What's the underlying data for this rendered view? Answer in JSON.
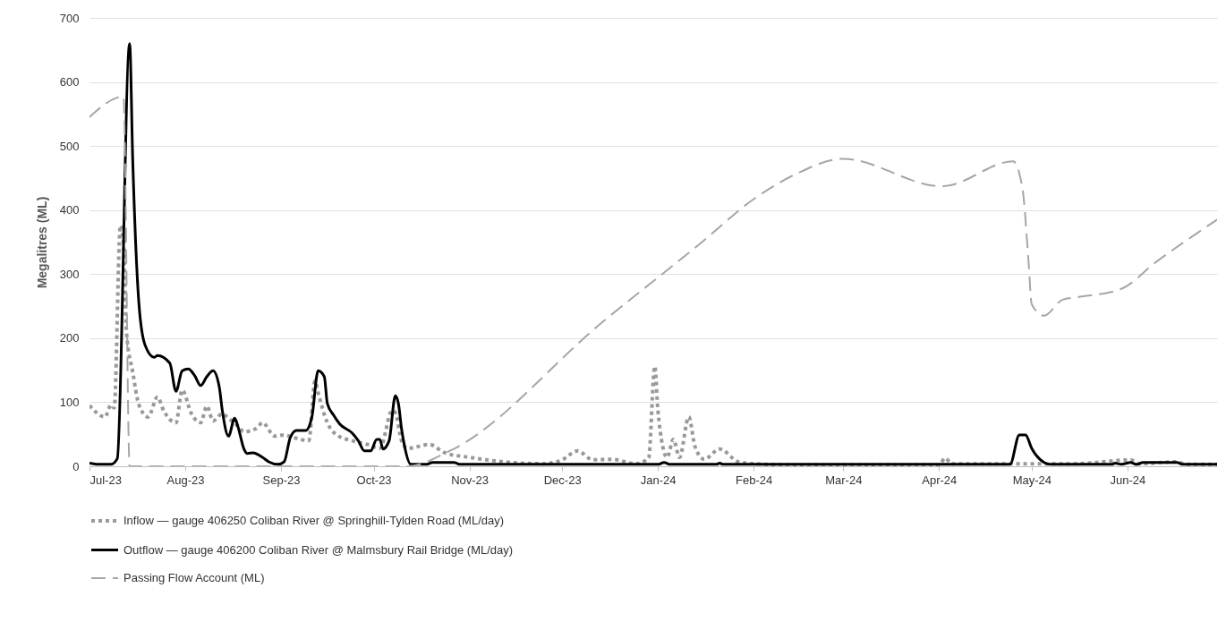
{
  "chart_data": {
    "type": "line",
    "ylabel": "Megalitres (ML)",
    "ylim": [
      0,
      700
    ],
    "yticks": [
      0,
      100,
      200,
      300,
      400,
      500,
      600,
      700
    ],
    "xlim": [
      "2023-07-01",
      "2024-06-30"
    ],
    "xticks": [
      {
        "value": "2023-07-01",
        "label": "Jul-23"
      },
      {
        "value": "2023-08-01",
        "label": "Aug-23"
      },
      {
        "value": "2023-09-01",
        "label": "Sep-23"
      },
      {
        "value": "2023-10-01",
        "label": "Oct-23"
      },
      {
        "value": "2023-11-01",
        "label": "Nov-23"
      },
      {
        "value": "2023-12-01",
        "label": "Dec-23"
      },
      {
        "value": "2024-01-01",
        "label": "Jan-24"
      },
      {
        "value": "2024-02-01",
        "label": "Feb-24"
      },
      {
        "value": "2024-03-01",
        "label": "Mar-24"
      },
      {
        "value": "2024-04-01",
        "label": "Apr-24"
      },
      {
        "value": "2024-05-01",
        "label": "May-24"
      },
      {
        "value": "2024-06-01",
        "label": "Jun-24"
      }
    ],
    "grid": "y",
    "legend": "bottom",
    "series": [
      {
        "name": "Inflow — gauge 406250 Coliban River @ Springhill-Tylden Road (ML/day)",
        "color": "#999999",
        "line_style": "dotted",
        "x": [
          "2023-07-01",
          "2023-07-03",
          "2023-07-06",
          "2023-07-08",
          "2023-07-09",
          "2023-07-11",
          "2023-07-12",
          "2023-07-13",
          "2023-07-15",
          "2023-07-17",
          "2023-07-20",
          "2023-07-23",
          "2023-07-25",
          "2023-07-29",
          "2023-07-31",
          "2023-08-03",
          "2023-08-06",
          "2023-08-08",
          "2023-08-10",
          "2023-08-13",
          "2023-08-15",
          "2023-08-18",
          "2023-08-20",
          "2023-08-24",
          "2023-08-26",
          "2023-08-30",
          "2023-09-02",
          "2023-09-05",
          "2023-09-10",
          "2023-09-12",
          "2023-09-13",
          "2023-09-16",
          "2023-09-19",
          "2023-09-24",
          "2023-09-29",
          "2023-10-03",
          "2023-10-07",
          "2023-10-08",
          "2023-10-10",
          "2023-10-12",
          "2023-10-19",
          "2023-10-24",
          "2023-11-01",
          "2023-11-12",
          "2023-11-25",
          "2023-12-01",
          "2023-12-06",
          "2023-12-11",
          "2023-12-17",
          "2023-12-25",
          "2023-12-29",
          "2023-12-31",
          "2024-01-01",
          "2024-01-04",
          "2024-01-06",
          "2024-01-08",
          "2024-01-11",
          "2024-01-13",
          "2024-01-16",
          "2024-01-21",
          "2024-01-27",
          "2024-02-01",
          "2024-02-15",
          "2024-03-15",
          "2024-04-01",
          "2024-04-03",
          "2024-04-05",
          "2024-05-15",
          "2024-06-02",
          "2024-06-05",
          "2024-06-17",
          "2024-06-20",
          "2024-06-30"
        ],
        "values": [
          95,
          85,
          77,
          96,
          91,
          376,
          348,
          208,
          147,
          96,
          77,
          108,
          87,
          68,
          119,
          82,
          68,
          94,
          71,
          82,
          75,
          63,
          54,
          59,
          68,
          47,
          49,
          45,
          40,
          133,
          115,
          68,
          49,
          40,
          34,
          28,
          87,
          84,
          40,
          28,
          34,
          21,
          14,
          7,
          4,
          10,
          24,
          10,
          11,
          4,
          13,
          156,
          87,
          14,
          42,
          14,
          77,
          31,
          11,
          27,
          7,
          4,
          2,
          2,
          2,
          13,
          4,
          4,
          10,
          4,
          7,
          3,
          3
        ]
      },
      {
        "name": "Outflow — gauge 406200 Coliban River @ Malmsbury Rail Bridge (ML/day)",
        "color": "#000000",
        "line_style": "solid",
        "x": [
          "2023-07-01",
          "2023-07-04",
          "2023-07-08",
          "2023-07-10",
          "2023-07-14",
          "2023-07-15",
          "2023-07-17",
          "2023-07-19",
          "2023-07-22",
          "2023-07-23",
          "2023-07-27",
          "2023-07-29",
          "2023-07-31",
          "2023-08-02",
          "2023-08-04",
          "2023-08-06",
          "2023-08-08",
          "2023-08-10",
          "2023-08-12",
          "2023-08-13",
          "2023-08-15",
          "2023-08-17",
          "2023-08-18",
          "2023-08-20",
          "2023-08-21",
          "2023-08-23",
          "2023-08-26",
          "2023-08-28",
          "2023-08-31",
          "2023-09-02",
          "2023-09-04",
          "2023-09-06",
          "2023-09-09",
          "2023-09-11",
          "2023-09-13",
          "2023-09-15",
          "2023-09-16",
          "2023-09-18",
          "2023-09-20",
          "2023-09-24",
          "2023-09-26",
          "2023-09-28",
          "2023-09-30",
          "2023-10-02",
          "2023-10-03",
          "2023-10-04",
          "2023-10-06",
          "2023-10-08",
          "2023-10-09",
          "2023-10-10",
          "2023-10-11",
          "2023-10-13",
          "2023-10-18",
          "2023-10-20",
          "2023-10-27",
          "2023-10-29",
          "2024-01-01",
          "2024-01-03",
          "2024-01-05",
          "2024-01-20",
          "2024-01-21",
          "2024-01-22",
          "2024-04-24",
          "2024-04-27",
          "2024-04-29",
          "2024-05-01",
          "2024-05-05",
          "2024-05-07",
          "2024-05-27",
          "2024-05-28",
          "2024-05-30",
          "2024-06-02",
          "2024-06-04",
          "2024-06-06",
          "2024-06-17",
          "2024-06-19",
          "2024-06-30"
        ],
        "values": [
          5,
          3,
          3,
          12,
          660,
          478,
          254,
          189,
          170,
          173,
          161,
          117,
          149,
          152,
          142,
          126,
          140,
          149,
          124,
          87,
          47,
          75,
          63,
          27,
          20,
          21,
          14,
          7,
          3,
          7,
          45,
          56,
          56,
          77,
          149,
          140,
          98,
          80,
          66,
          52,
          40,
          24,
          24,
          42,
          42,
          27,
          40,
          110,
          98,
          59,
          31,
          3,
          3,
          6,
          6,
          3,
          3,
          6,
          3,
          3,
          5,
          3,
          3,
          49,
          49,
          28,
          6,
          3,
          3,
          5,
          3,
          6,
          3,
          6,
          6,
          3,
          3
        ]
      },
      {
        "name": "Passing Flow Account (ML)",
        "color": "#a6a6a6",
        "line_style": "dashed",
        "x": [
          "2023-07-01",
          "2023-07-12",
          "2023-07-14",
          "2023-08-28",
          "2023-10-12",
          "2023-10-26",
          "2023-12-14",
          "2024-01-15",
          "2024-02-01",
          "2024-02-15",
          "2024-03-01",
          "2024-04-02",
          "2024-04-25",
          "2024-04-28",
          "2024-04-30",
          "2024-05-01",
          "2024-05-05",
          "2024-05-11",
          "2024-05-16",
          "2024-05-30",
          "2024-06-10",
          "2024-06-30"
        ],
        "values": [
          545,
          577,
          0,
          0,
          0,
          25,
          225,
          349,
          417,
          457,
          480,
          437,
          476,
          434,
          318,
          253,
          235,
          260,
          264,
          277,
          318,
          385
        ]
      }
    ]
  }
}
